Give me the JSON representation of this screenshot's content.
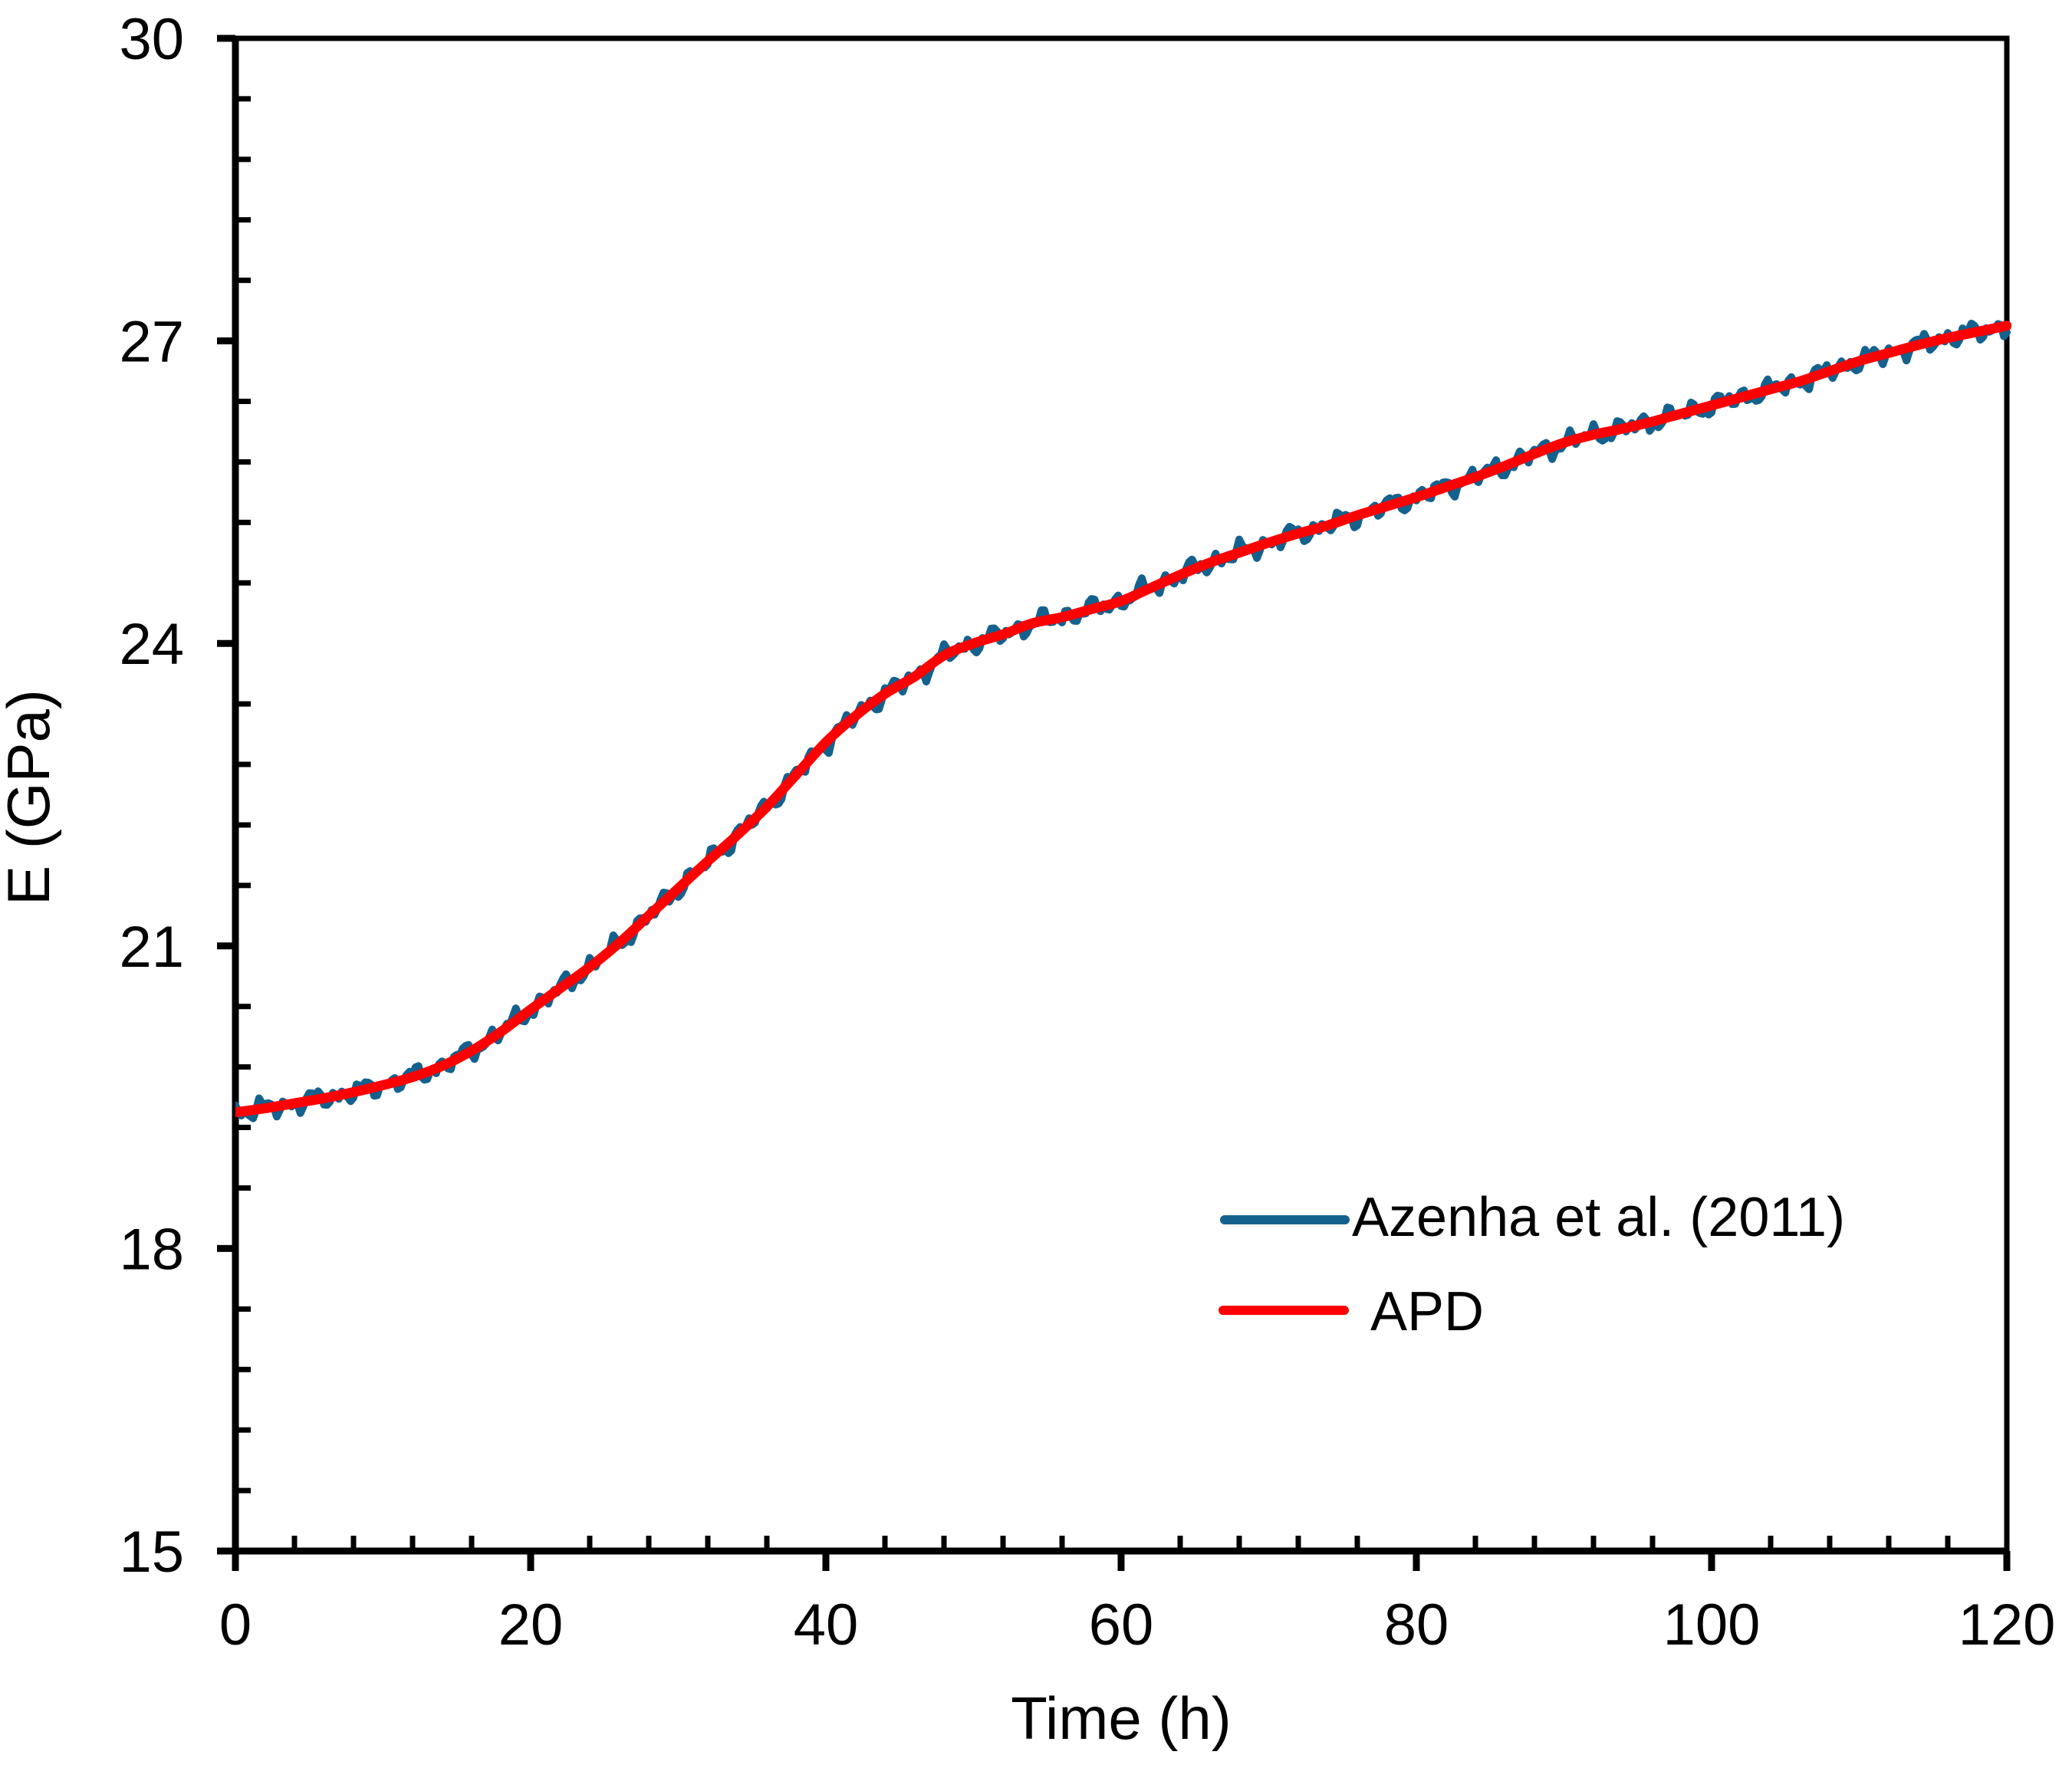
{
  "figure": {
    "background_color": "#ffffff",
    "axis_color": "#000000",
    "text_color": "#000000"
  },
  "x_axis": {
    "title": "Time (h)",
    "min": 0,
    "max": 120,
    "major_unit": 20,
    "minor_unit": 4,
    "major_tick_labels": [
      "0",
      "20",
      "40",
      "60",
      "80",
      "100",
      "120"
    ]
  },
  "y_axis": {
    "title": "E (GPa)",
    "min": 15,
    "max": 30,
    "major_unit": 3,
    "minor_unit": 0.6,
    "major_tick_labels": [
      "15",
      "18",
      "21",
      "24",
      "27",
      "30"
    ]
  },
  "legend": {
    "position": "inside-plot-right-middle",
    "items": [
      {
        "label": "Azenha et al. (2011)",
        "color": "#15618E"
      },
      {
        "label": "APD",
        "color": "#FF0000"
      }
    ]
  },
  "chart_data": {
    "type": "line",
    "title": "",
    "xlabel": "Time (h)",
    "ylabel": "E (GPa)",
    "xlim": [
      0,
      120
    ],
    "ylim": [
      15,
      30
    ],
    "grid": false,
    "legend_position": "inside right-center",
    "x": [
      0,
      2,
      4,
      6,
      8,
      10,
      12,
      14,
      16,
      18,
      20,
      22,
      24,
      26,
      28,
      30,
      32,
      34,
      36,
      38,
      40,
      42,
      44,
      46,
      48,
      50,
      52,
      54,
      56,
      58,
      60,
      62,
      64,
      66,
      68,
      70,
      72,
      74,
      76,
      78,
      80,
      82,
      84,
      86,
      88,
      90,
      92,
      94,
      96,
      98,
      100,
      102,
      104,
      106,
      108,
      110,
      112,
      114,
      116,
      118,
      120
    ],
    "series": [
      {
        "name": "Azenha et al. (2011)",
        "color": "#15618E",
        "style": "noisy-measurement",
        "noise": {
          "amplitude_gpa": 0.09,
          "period_h": 1.7
        },
        "values": [
          19.35,
          19.39,
          19.44,
          19.49,
          19.55,
          19.62,
          19.7,
          19.81,
          19.96,
          20.15,
          20.37,
          20.58,
          20.79,
          21.03,
          21.3,
          21.57,
          21.84,
          22.1,
          22.38,
          22.7,
          23.02,
          23.28,
          23.5,
          23.67,
          23.88,
          24.0,
          24.09,
          24.2,
          24.26,
          24.34,
          24.42,
          24.55,
          24.68,
          24.8,
          24.9,
          25.0,
          25.09,
          25.17,
          25.27,
          25.36,
          25.45,
          25.55,
          25.65,
          25.76,
          25.88,
          25.99,
          26.07,
          26.13,
          26.2,
          26.28,
          26.36,
          26.44,
          26.52,
          26.6,
          26.7,
          26.8,
          26.88,
          26.96,
          27.03,
          27.09,
          27.15
        ]
      },
      {
        "name": "APD",
        "color": "#FF0000",
        "style": "smooth-model",
        "values": [
          19.35,
          19.39,
          19.44,
          19.49,
          19.55,
          19.62,
          19.7,
          19.81,
          19.96,
          20.15,
          20.37,
          20.58,
          20.79,
          21.03,
          21.3,
          21.57,
          21.84,
          22.1,
          22.38,
          22.7,
          23.02,
          23.28,
          23.5,
          23.67,
          23.88,
          24.0,
          24.09,
          24.2,
          24.26,
          24.34,
          24.42,
          24.55,
          24.68,
          24.8,
          24.9,
          25.0,
          25.09,
          25.17,
          25.27,
          25.36,
          25.45,
          25.55,
          25.65,
          25.76,
          25.88,
          25.99,
          26.07,
          26.13,
          26.2,
          26.28,
          26.36,
          26.44,
          26.52,
          26.6,
          26.7,
          26.8,
          26.88,
          26.96,
          27.03,
          27.09,
          27.15
        ]
      }
    ]
  }
}
